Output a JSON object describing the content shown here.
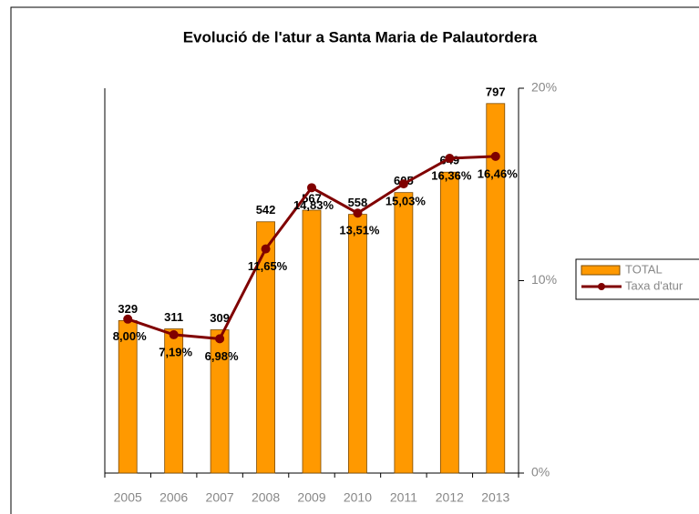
{
  "chart_data": {
    "type": "bar",
    "title": "Evolució de l'atur a Santa Maria de Palautordera",
    "categories": [
      "2005",
      "2006",
      "2007",
      "2008",
      "2009",
      "2010",
      "2011",
      "2012",
      "2013"
    ],
    "series": [
      {
        "name": "TOTAL",
        "type": "bar",
        "color": "#ff9900",
        "axis": "y",
        "values": [
          329,
          311,
          309,
          542,
          567,
          558,
          605,
          649,
          797
        ]
      },
      {
        "name": "Taxa d'atur",
        "type": "line",
        "color": "#800000",
        "axis": "y2",
        "values": [
          8.0,
          7.19,
          6.98,
          11.65,
          14.83,
          13.51,
          15.03,
          16.36,
          16.46
        ],
        "value_labels": [
          "8,00%",
          "7,19%",
          "6,98%",
          "11,65%",
          "14,83%",
          "13,51%",
          "15,03%",
          "16,36%",
          "16,46%"
        ]
      }
    ],
    "ylim": [
      0,
      830
    ],
    "y2lim": [
      0,
      20
    ],
    "y2ticks": [
      {
        "value": 0,
        "label": "0%"
      },
      {
        "value": 10,
        "label": "10%"
      },
      {
        "value": 20,
        "label": "20%"
      }
    ],
    "legend": "right"
  }
}
